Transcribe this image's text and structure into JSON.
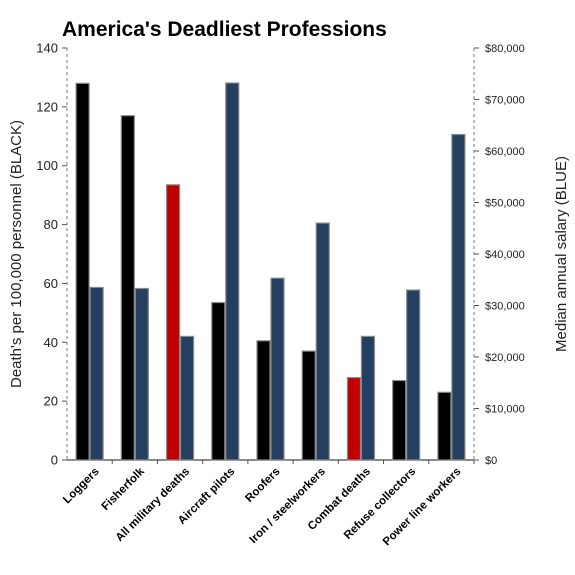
{
  "chart_data": {
    "type": "bar",
    "title": "America's Deadliest Professions",
    "categories": [
      "Loggers",
      "Fisherfolk",
      "All military deaths",
      "Aircraft pilots",
      "Roofers",
      "Iron / steelworkers",
      "Combat deaths",
      "Refuse collectors",
      "Power line workers"
    ],
    "series": [
      {
        "values": [
          128,
          117,
          93.5,
          53.5,
          40.5,
          37,
          28,
          27,
          23
        ],
        "axis": "left",
        "color": "#000000",
        "highlight_color": "#c00000",
        "highlight_indices": [
          2,
          6
        ]
      },
      {
        "values": [
          33500,
          33300,
          24000,
          73200,
          35300,
          46000,
          24000,
          33000,
          63200
        ],
        "axis": "right",
        "color": "#243f60"
      }
    ],
    "ylabel": "Death's per 100,000 personnel (BLACK)",
    "y2label": "Median annual salary (BLUE)",
    "ylim": [
      0,
      140
    ],
    "y2lim": [
      0,
      80000
    ],
    "yticks": [
      "0",
      "20",
      "40",
      "60",
      "80",
      "100",
      "120",
      "140"
    ],
    "y2ticks": [
      "$0",
      "$10,000",
      "$20,000",
      "$30,000",
      "$40,000",
      "$50,000",
      "$60,000",
      "$70,000",
      "$80,000"
    ],
    "grid": false,
    "legend": "none"
  }
}
